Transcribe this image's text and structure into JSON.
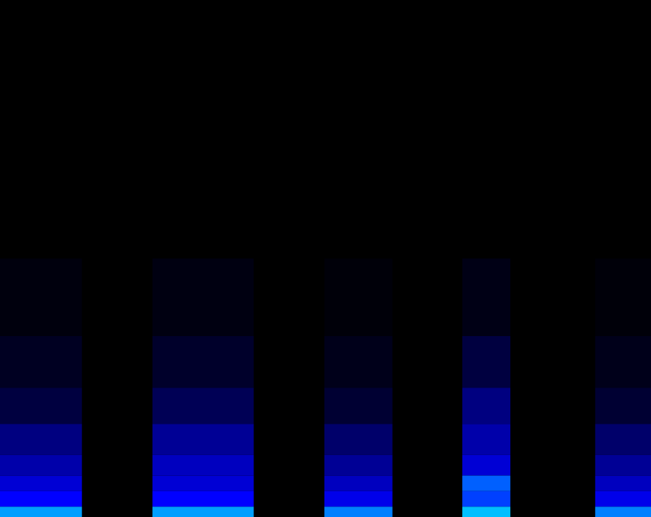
{
  "chart_data": {
    "type": "heatmap",
    "xlim": [
      0,
      100
    ],
    "ylim": [
      0,
      100
    ],
    "grid": false,
    "tick_labels": false,
    "color_range": [
      0,
      1
    ],
    "bands": [
      0,
      2,
      5,
      8,
      12,
      18,
      25,
      35,
      50,
      100
    ],
    "segments": [
      {
        "start": 0,
        "end": 12.6,
        "intensity": [
          0.85,
          0.6,
          0.5,
          0.4,
          0.3,
          0.15,
          0.08,
          0.03,
          0
        ]
      },
      {
        "start": 23.4,
        "end": 39.0,
        "intensity": [
          0.85,
          0.6,
          0.5,
          0.45,
          0.35,
          0.2,
          0.1,
          0.04,
          0
        ]
      },
      {
        "start": 49.8,
        "end": 60.3,
        "intensity": [
          0.8,
          0.55,
          0.45,
          0.35,
          0.25,
          0.12,
          0.06,
          0.02,
          0
        ]
      },
      {
        "start": 71.0,
        "end": 78.4,
        "intensity": [
          0.9,
          0.7,
          0.75,
          0.5,
          0.4,
          0.3,
          0.15,
          0.05,
          0
        ]
      },
      {
        "start": 91.4,
        "end": 100,
        "intensity": [
          0.8,
          0.55,
          0.45,
          0.35,
          0.25,
          0.12,
          0.06,
          0.02,
          0
        ]
      }
    ]
  }
}
